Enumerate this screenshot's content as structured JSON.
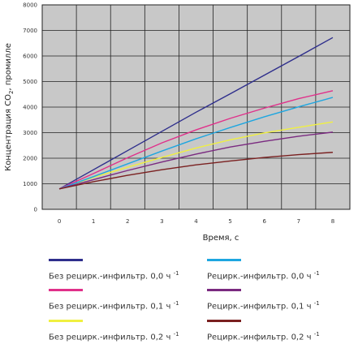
{
  "chart_data": {
    "type": "line",
    "xlabel": "Время, с",
    "ylabel": "Концентрация CO",
    "ylabel_sub": "2",
    "ylabel_tail": ", промилле",
    "xlim": [
      -0.5,
      8.5
    ],
    "ylim": [
      0,
      8000
    ],
    "x_ticks": [
      0,
      1,
      2,
      3,
      4,
      5,
      6,
      7,
      8
    ],
    "y_ticks": [
      0,
      1000,
      2000,
      3000,
      4000,
      5000,
      6000,
      7000,
      8000
    ],
    "grid": true,
    "background": "#c8c8c8",
    "x": [
      0,
      1,
      2,
      3,
      4,
      5,
      6,
      7,
      8
    ],
    "series": [
      {
        "name": "Без рецирк.-инфильтр. 0,0 ч",
        "unit_sup": "-1",
        "color": "#2e2e8c",
        "values": [
          800,
          1550,
          2300,
          3050,
          3800,
          4520,
          5250,
          5980,
          6720
        ]
      },
      {
        "name": "Без рецирк.-инфильтр. 0,1 ч",
        "unit_sup": "-1",
        "color": "#e0308a",
        "values": [
          800,
          1400,
          2020,
          2600,
          3110,
          3560,
          3960,
          4330,
          4640
        ]
      },
      {
        "name": "Без рецирк.-инфильтр. 0,2 ч",
        "unit_sup": "-1",
        "color": "#f0f040",
        "values": [
          800,
          1250,
          1650,
          2030,
          2400,
          2720,
          2990,
          3210,
          3420
        ]
      },
      {
        "name": "Рецирк.-инфильтр. 0,0 ч",
        "unit_sup": "-1",
        "color": "#1ea6e0",
        "values": [
          800,
          1280,
          1780,
          2280,
          2760,
          3200,
          3620,
          4010,
          4380
        ]
      },
      {
        "name": "Рецирк.-инфильтр. 0,1 ч",
        "unit_sup": "-1",
        "color": "#7a2a80",
        "values": [
          800,
          1160,
          1520,
          1850,
          2160,
          2440,
          2660,
          2860,
          3020
        ]
      },
      {
        "name": "Рецирк.-инфильтр. 0,2 ч",
        "unit_sup": "-1",
        "color": "#7a2020",
        "values": [
          800,
          1080,
          1330,
          1550,
          1740,
          1890,
          2030,
          2140,
          2230
        ]
      }
    ],
    "legend_position": "bottom"
  }
}
